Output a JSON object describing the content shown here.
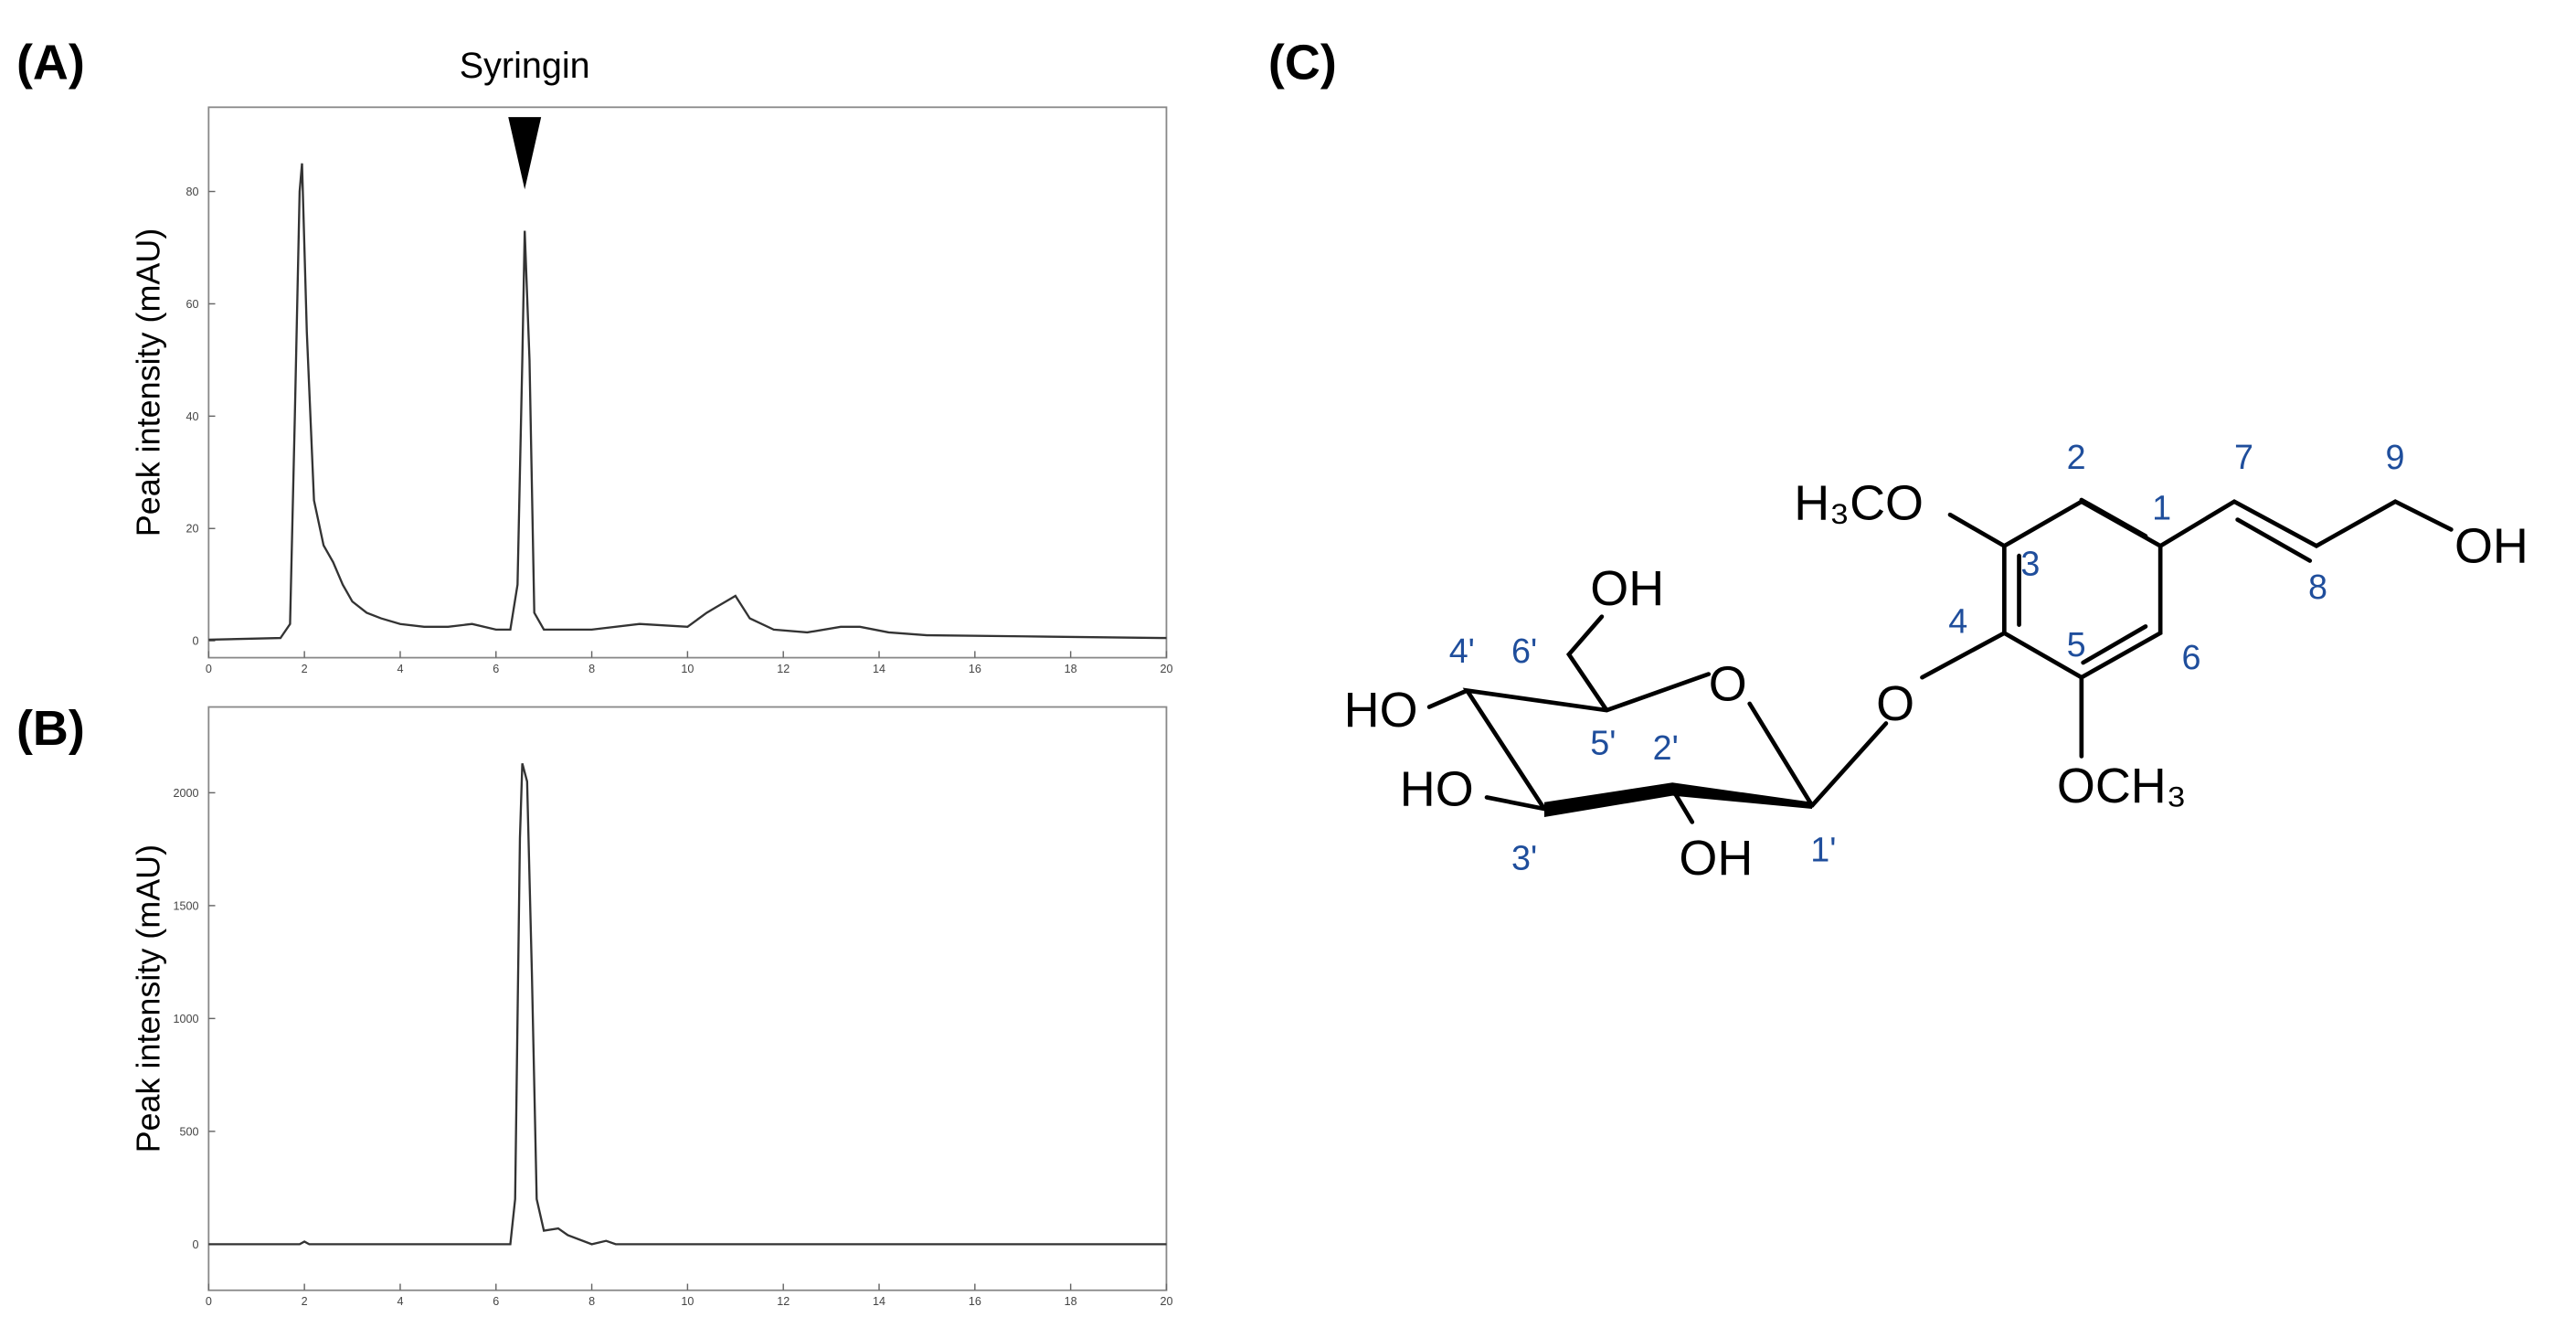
{
  "panels": [
    "(A)",
    "(B)",
    "(C)"
  ],
  "chart_data": [
    {
      "type": "line",
      "annotation": "Syringin",
      "annotation_x": 6.6,
      "ylabel": "Peak intensity (mAU)",
      "color": "#333333",
      "x": [
        0,
        1.5,
        1.7,
        1.8,
        1.9,
        1.95,
        2.05,
        2.2,
        2.4,
        2.6,
        2.8,
        3.0,
        3.3,
        3.6,
        4,
        4.5,
        5,
        5.5,
        6,
        6.3,
        6.45,
        6.55,
        6.6,
        6.7,
        6.8,
        7,
        8,
        9,
        10,
        10.4,
        10.6,
        10.8,
        11,
        11.3,
        11.8,
        12.5,
        13.2,
        13.6,
        14.2,
        15,
        17,
        20
      ],
      "values": [
        0.2,
        0.5,
        3,
        40,
        80,
        85,
        55,
        25,
        17,
        14,
        10,
        7,
        5,
        4,
        3,
        2.5,
        2.5,
        3,
        2,
        2,
        10,
        50,
        73,
        50,
        5,
        2,
        2,
        3,
        2.5,
        5,
        6,
        7,
        8,
        4,
        2,
        1.5,
        2.5,
        2.5,
        1.5,
        1,
        0.8,
        0.5
      ],
      "xlim": [
        0,
        20
      ],
      "ylim": [
        -3,
        95
      ],
      "xticks": [
        0,
        2,
        4,
        6,
        8,
        10,
        12,
        14,
        16,
        18,
        20
      ],
      "yticks": [
        0,
        20,
        40,
        60,
        80
      ]
    },
    {
      "type": "line",
      "ylabel": "Peak intensity (mAU)",
      "color": "#333333",
      "x": [
        0,
        1.9,
        2,
        2.1,
        6.3,
        6.4,
        6.5,
        6.55,
        6.65,
        6.75,
        6.85,
        7,
        7.3,
        7.5,
        8,
        8.3,
        8.5,
        20
      ],
      "values": [
        0,
        0,
        12,
        0,
        0,
        200,
        1800,
        2130,
        2050,
        1200,
        200,
        60,
        70,
        40,
        0,
        15,
        0,
        0
      ],
      "xlim": [
        0,
        20
      ],
      "ylim": [
        -204,
        2380
      ],
      "xticks": [
        0,
        2,
        4,
        6,
        8,
        10,
        12,
        14,
        16,
        18,
        20
      ],
      "yticks": [
        0,
        500,
        1000,
        1500,
        2000
      ]
    }
  ],
  "structure": {
    "atoms": [
      "H₃CO",
      "OH",
      "OH",
      "O",
      "O",
      "HO",
      "HO",
      "OH",
      "OCH₃"
    ],
    "numbers": [
      "2",
      "7",
      "9",
      "1",
      "3",
      "8",
      "4",
      "5",
      "6",
      "4'",
      "6'",
      "5'",
      "2'",
      "1'",
      "3'"
    ]
  }
}
